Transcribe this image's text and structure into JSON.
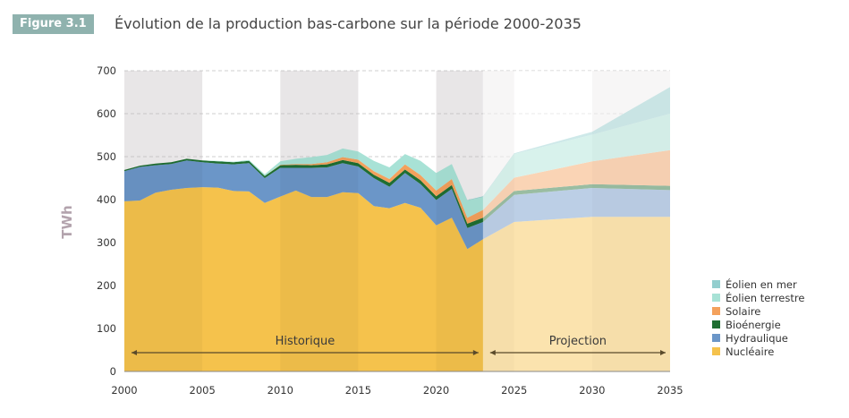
{
  "header": {
    "badge": "Figure 3.1",
    "title": "Évolution de la production bas-carbone sur la période 2000-2035"
  },
  "chart_data": {
    "type": "area",
    "stacked": true,
    "title": "Évolution de la production bas-carbone sur la période 2000-2035",
    "xlabel": "",
    "ylabel": "TWh",
    "xlim": [
      2000,
      2035
    ],
    "ylim": [
      0,
      700
    ],
    "yticks": [
      0,
      100,
      200,
      300,
      400,
      500,
      600,
      700
    ],
    "xticks": [
      2000,
      2005,
      2010,
      2015,
      2020,
      2025,
      2030,
      2035
    ],
    "grid": "horizontal dashed",
    "legend_position": "right-bottom",
    "history_end": 2023,
    "annotations": [
      {
        "text": "Historique",
        "from": 2000,
        "to": 2023
      },
      {
        "text": "Projection",
        "from": 2023,
        "to": 2035
      }
    ],
    "x": [
      2000,
      2001,
      2002,
      2003,
      2004,
      2005,
      2006,
      2007,
      2008,
      2009,
      2010,
      2011,
      2012,
      2013,
      2014,
      2015,
      2016,
      2017,
      2018,
      2019,
      2020,
      2021,
      2022,
      2023,
      2025,
      2030,
      2035
    ],
    "series": [
      {
        "name": "Nucléaire",
        "color": "#f5c24c",
        "values": [
          396,
          398,
          416,
          423,
          427,
          429,
          428,
          420,
          419,
          392,
          407,
          421,
          406,
          406,
          417,
          415,
          385,
          380,
          392,
          381,
          340,
          358,
          285,
          308,
          348,
          360,
          360
        ]
      },
      {
        "name": "Hydraulique",
        "color": "#6b96c8",
        "values": [
          70,
          78,
          64,
          60,
          64,
          58,
          56,
          62,
          66,
          58,
          67,
          53,
          68,
          69,
          68,
          62,
          65,
          50,
          70,
          55,
          59,
          67,
          49,
          40,
          63,
          67,
          62
        ]
      },
      {
        "name": "Bioénergie",
        "color": "#1f6e32",
        "values": [
          3,
          3,
          4,
          4,
          4,
          4,
          5,
          5,
          5,
          5,
          6,
          7,
          6,
          7,
          7,
          8,
          8,
          9,
          8,
          9,
          9,
          9,
          10,
          10,
          9,
          9,
          10
        ]
      },
      {
        "name": "Solaire",
        "color": "#f4a15c",
        "values": [
          0,
          0,
          0,
          0,
          0,
          0,
          0,
          0,
          0,
          0,
          1,
          2,
          3,
          5,
          7,
          8,
          8,
          9,
          12,
          12,
          13,
          14,
          14,
          18,
          31,
          53,
          83
        ]
      },
      {
        "name": "Éolien terrestre",
        "color": "#a8e2d6",
        "values": [
          0,
          0,
          0,
          0,
          0,
          0,
          1,
          1,
          2,
          4,
          8,
          12,
          16,
          17,
          20,
          19,
          24,
          27,
          24,
          33,
          41,
          35,
          40,
          30,
          55,
          62,
          85
        ]
      },
      {
        "name": "Éolien en mer",
        "color": "#93cece",
        "values": [
          0,
          0,
          0,
          0,
          0,
          0,
          0,
          0,
          0,
          0,
          0,
          0,
          0,
          0,
          0,
          0,
          0,
          0,
          0,
          0,
          0,
          0,
          1,
          2,
          2,
          7,
          62
        ]
      }
    ]
  },
  "legend": {
    "items": [
      {
        "label": "Éolien en mer",
        "color": "#93cece"
      },
      {
        "label": "Éolien terrestre",
        "color": "#a8e2d6"
      },
      {
        "label": "Solaire",
        "color": "#f4a15c"
      },
      {
        "label": "Bioénergie",
        "color": "#1f6e32"
      },
      {
        "label": "Hydraulique",
        "color": "#6b96c8"
      },
      {
        "label": "Nucléaire",
        "color": "#f5c24c"
      }
    ]
  }
}
